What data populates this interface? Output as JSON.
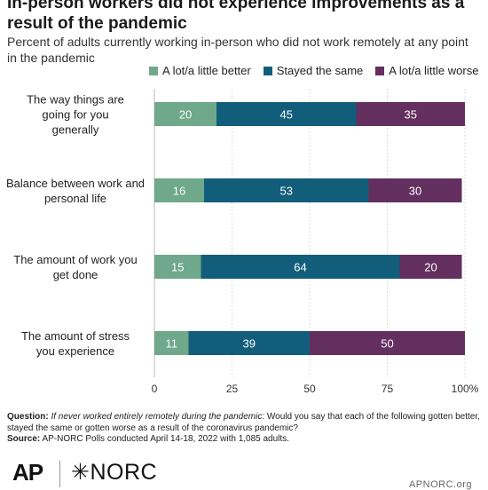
{
  "title": "In-person workers did not experience improvements as a result of the pandemic",
  "subtitle": "Percent of adults currently working in-person who did not work remotely at any point in the pandemic",
  "colors": {
    "better": "#6fa88a",
    "same": "#125e7a",
    "worse": "#632f5f",
    "grid": "#dddddd",
    "axis": "#bbbbbb"
  },
  "chart_data": {
    "type": "bar",
    "orientation": "horizontal",
    "stacked": true,
    "categories": [
      "The way things are going for you generally",
      "Balance between work and personal life",
      "The amount of work you get done",
      "The amount of stress you experience"
    ],
    "series": [
      {
        "name": "A lot/a little better",
        "values": [
          20,
          16,
          15,
          11
        ]
      },
      {
        "name": "Stayed the same",
        "values": [
          45,
          53,
          64,
          39
        ]
      },
      {
        "name": "A lot/a little worse",
        "values": [
          35,
          30,
          20,
          50
        ]
      }
    ],
    "xlim": [
      0,
      100
    ],
    "xticks": [
      "0",
      "25",
      "50",
      "75",
      "100%"
    ],
    "legend": "top",
    "grid": true
  },
  "footer": {
    "question_label": "Question:",
    "question_italic": "If never worked entirely remotely during the pandemic:",
    "question_text": "Would you say that each of the following gotten better, stayed the same or gotten worse as a result of the coronavirus pandemic?",
    "source_label": "Source:",
    "source_text": "AP-NORC Polls conducted April 14-18, 2022 with 1,085 adults."
  },
  "logos": {
    "ap": "AP",
    "norc": "NORC",
    "site": "APNORC.org"
  }
}
